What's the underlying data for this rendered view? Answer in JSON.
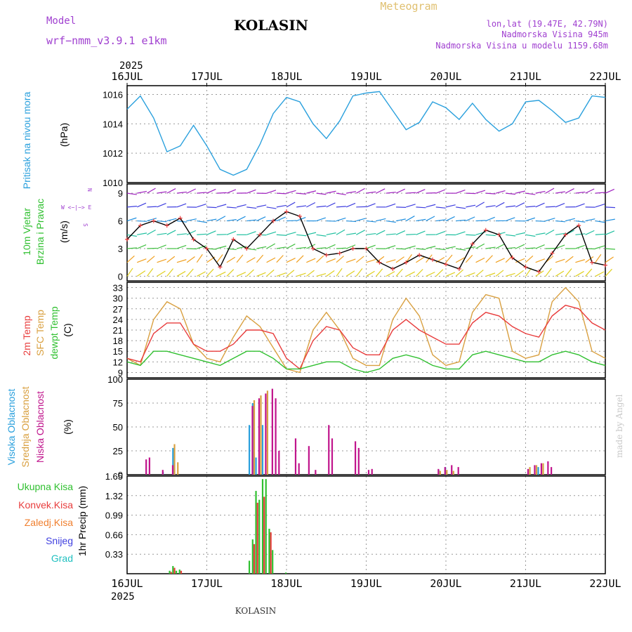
{
  "header": {
    "model_label": "Model",
    "model_name": "wrf−nmm_v3.9.1  e1km",
    "station": "KOLASIN",
    "title": "Meteogram",
    "lonlat": "lon,lat (19.47E, 42.79N)",
    "elevation": "Nadmorska Visina 945m",
    "model_elevation": "Nadmorska Visina u modelu 1159.68m",
    "year_top": "2025",
    "year_bottom": "2025",
    "footer": "KOLASIN",
    "credit": "made by Angel"
  },
  "colors": {
    "pressure": "#2aa0dd",
    "temp2m": "#e83c3c",
    "sfc_temp": "#d9a040",
    "dewpoint": "#30c030",
    "high_cloud": "#2aa0dd",
    "mid_cloud": "#d9a040",
    "low_cloud": "#c0148c",
    "precip_total": "#30c030",
    "precip_conv": "#e83c3c",
    "precip_freezing": "#f08030",
    "snow": "#4040e0",
    "hail": "#20c0c0",
    "title_header": "#e0c070",
    "purple_text": "#a040d0"
  },
  "labels": {
    "pressure": [
      "Pritisak na nivou mora",
      "(hPa)"
    ],
    "wind": [
      "10m Vjetar",
      "Brzina i Pravac",
      "(m/s)"
    ],
    "compass": [
      "N",
      "W <−|−> E",
      "S"
    ],
    "temp": [
      "2m Temp",
      "SFC Temp",
      "dewpt Temp",
      "(C)"
    ],
    "cloud": [
      "Visoka Oblacnost",
      "Srednja Oblacnost",
      "Niska Oblacnost",
      "(%)"
    ],
    "precip_unit": "1hr Precip (mm)",
    "precip_legend": [
      "Ukupna Kisa",
      "Konvek.Kisa",
      "Zaledj.Kisa",
      "Snijeg",
      "Grad"
    ]
  },
  "chart_data": [
    {
      "type": "line",
      "name": "pressure",
      "x_ticks": [
        "16JUL",
        "17JUL",
        "18JUL",
        "19JUL",
        "20JUL",
        "21JUL",
        "22JUL"
      ],
      "y_ticks": [
        1010,
        1012,
        1014,
        1016
      ],
      "ylim": [
        1010,
        1016.6
      ],
      "x": [
        0,
        4,
        8,
        12,
        16,
        20,
        24,
        28,
        32,
        36,
        40,
        44,
        48,
        52,
        56,
        60,
        64,
        68,
        72,
        76,
        80,
        84,
        88,
        92,
        96,
        100,
        104,
        108,
        112,
        116,
        120,
        124,
        128,
        132,
        136,
        140,
        144
      ],
      "series": [
        {
          "name": "pressure",
          "values": [
            1015.0,
            1015.9,
            1014.4,
            1012.1,
            1012.5,
            1013.9,
            1012.5,
            1010.9,
            1010.5,
            1010.9,
            1012.6,
            1014.7,
            1015.8,
            1015.5,
            1014.0,
            1013.0,
            1014.2,
            1015.9,
            1016.1,
            1016.2,
            1014.9,
            1013.6,
            1014.1,
            1015.5,
            1015.1,
            1014.3,
            1015.4,
            1014.3,
            1013.5,
            1014.0,
            1015.5,
            1015.6,
            1014.9,
            1014.1,
            1014.4,
            1015.9,
            1015.8
          ]
        }
      ]
    },
    {
      "type": "line",
      "name": "wind_speed",
      "y_ticks": [
        0,
        3,
        6,
        9
      ],
      "ylim": [
        -0.5,
        10
      ],
      "x": [
        0,
        4,
        8,
        12,
        16,
        20,
        24,
        28,
        32,
        36,
        40,
        44,
        48,
        52,
        56,
        60,
        64,
        68,
        72,
        76,
        80,
        84,
        88,
        92,
        96,
        100,
        104,
        108,
        112,
        116,
        120,
        124,
        128,
        132,
        136,
        140,
        144
      ],
      "series": [
        {
          "name": "10m",
          "values": [
            4.0,
            5.5,
            6.0,
            5.5,
            6.3,
            4.0,
            3.0,
            1.0,
            4.0,
            3.0,
            4.5,
            6.0,
            7.0,
            6.5,
            3.0,
            2.3,
            2.5,
            3.0,
            3.0,
            1.5,
            0.8,
            1.5,
            2.3,
            1.8,
            1.3,
            0.8,
            3.5,
            5.0,
            4.5,
            2.0,
            1.0,
            0.5,
            2.5,
            4.5,
            5.5,
            1.5,
            1.2
          ]
        }
      ]
    },
    {
      "type": "line",
      "name": "temperature",
      "y_ticks": [
        9,
        12,
        15,
        18,
        21,
        24,
        27,
        30,
        33
      ],
      "ylim": [
        7.5,
        34.5
      ],
      "x": [
        0,
        4,
        8,
        12,
        16,
        20,
        24,
        28,
        32,
        36,
        40,
        44,
        48,
        52,
        56,
        60,
        64,
        68,
        72,
        76,
        80,
        84,
        88,
        92,
        96,
        100,
        104,
        108,
        112,
        116,
        120,
        124,
        128,
        132,
        136,
        140,
        144
      ],
      "series": [
        {
          "name": "2m Temp",
          "values": [
            13,
            12,
            20,
            23,
            23,
            17,
            15,
            15,
            17,
            21,
            21,
            20,
            13,
            10,
            18,
            22,
            21,
            16,
            14,
            14,
            21,
            24,
            21,
            19,
            17,
            17,
            23,
            26,
            25,
            22,
            20,
            19,
            25,
            28,
            27,
            23,
            21
          ]
        },
        {
          "name": "SFC Temp",
          "values": [
            13,
            11,
            24,
            29,
            27,
            17,
            13,
            12,
            19,
            25,
            22,
            16,
            10,
            9,
            21,
            26,
            21,
            13,
            11,
            11,
            24,
            30,
            25,
            14,
            11,
            12,
            26,
            31,
            30,
            15,
            13,
            14,
            29,
            33,
            29,
            15,
            13
          ]
        },
        {
          "name": "dewpt Temp",
          "values": [
            12,
            11,
            15,
            15,
            14,
            13,
            12,
            11,
            13,
            15,
            15,
            13,
            10,
            10,
            11,
            12,
            12,
            10,
            9,
            10,
            13,
            14,
            13,
            11,
            10,
            10,
            14,
            15,
            14,
            13,
            12,
            12,
            14,
            15,
            14,
            12,
            11
          ]
        }
      ]
    },
    {
      "type": "bar",
      "name": "cloud_cover",
      "y_ticks": [
        0,
        25,
        50,
        75,
        100
      ],
      "ylim": [
        0,
        100
      ],
      "series": [
        {
          "name": "Visoka Oblacnost",
          "points": [
            [
              11,
              3
            ],
            [
              14,
              28
            ],
            [
              37,
              52
            ],
            [
              38,
              75
            ],
            [
              39,
              18
            ],
            [
              41,
              52
            ],
            [
              94,
              5
            ],
            [
              96,
              8
            ],
            [
              124,
              8
            ]
          ]
        },
        {
          "name": "Srednja Oblacnost",
          "points": [
            [
              14,
              32
            ],
            [
              15,
              13
            ],
            [
              38,
              78
            ],
            [
              40,
              83
            ],
            [
              42,
              88
            ],
            [
              94,
              4
            ],
            [
              96,
              5
            ],
            [
              98,
              4
            ],
            [
              121,
              8
            ],
            [
              123,
              10
            ],
            [
              125,
              12
            ]
          ]
        },
        {
          "name": "Niska Oblacnost",
          "points": [
            [
              5,
              16
            ],
            [
              6,
              18
            ],
            [
              10,
              5
            ],
            [
              13,
              10
            ],
            [
              37,
              72
            ],
            [
              39,
              80
            ],
            [
              41,
              85
            ],
            [
              43,
              90
            ],
            [
              44,
              80
            ],
            [
              45,
              25
            ],
            [
              50,
              38
            ],
            [
              51,
              12
            ],
            [
              54,
              30
            ],
            [
              56,
              5
            ],
            [
              60,
              52
            ],
            [
              61,
              38
            ],
            [
              68,
              35
            ],
            [
              69,
              28
            ],
            [
              72,
              5
            ],
            [
              73,
              6
            ],
            [
              93,
              6
            ],
            [
              95,
              8
            ],
            [
              97,
              10
            ],
            [
              99,
              8
            ],
            [
              120,
              6
            ],
            [
              122,
              10
            ],
            [
              124,
              12
            ],
            [
              126,
              14
            ],
            [
              127,
              8
            ]
          ]
        }
      ]
    },
    {
      "type": "bar",
      "name": "precipitation",
      "y_ticks": [
        0.33,
        0.66,
        0.99,
        1.32,
        1.65
      ],
      "ylim": [
        0,
        1.65
      ],
      "series": [
        {
          "name": "Ukupna Kisa",
          "points": [
            [
              13,
              0.05
            ],
            [
              14,
              0.13
            ],
            [
              15,
              0.05
            ],
            [
              16,
              0.07
            ],
            [
              37,
              0.22
            ],
            [
              38,
              0.58
            ],
            [
              39,
              1.4
            ],
            [
              40,
              1.25
            ],
            [
              41,
              1.6
            ],
            [
              42,
              1.6
            ],
            [
              43,
              0.76
            ],
            [
              44,
              0.4
            ],
            [
              48,
              0.02
            ]
          ]
        },
        {
          "name": "Konvek.Kisa",
          "points": [
            [
              13,
              0.03
            ],
            [
              14,
              0.1
            ],
            [
              16,
              0.05
            ],
            [
              38,
              0.5
            ],
            [
              39,
              1.2
            ],
            [
              41,
              1.3
            ],
            [
              43,
              0.7
            ]
          ]
        }
      ]
    }
  ]
}
